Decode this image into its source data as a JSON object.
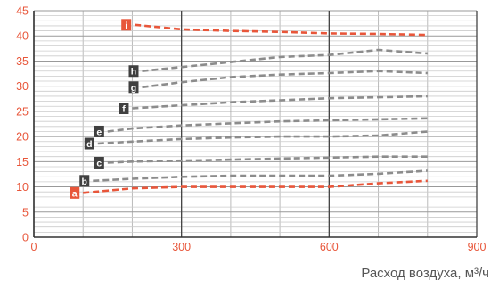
{
  "chart_data": {
    "type": "line",
    "title": "",
    "xlabel": "Расход воздуха, м³/ч",
    "ylabel": "",
    "xlim": [
      0,
      900
    ],
    "ylim": [
      0,
      45
    ],
    "xticks": [
      0,
      300,
      600,
      900
    ],
    "yticks": [
      0,
      5,
      10,
      15,
      20,
      25,
      30,
      35,
      40,
      45
    ],
    "grid": true,
    "legend": "labels at line starts",
    "colors": {
      "axis_text": "#e8563a",
      "gray_series": "#8c8c8c",
      "orange_series": "#e8563a",
      "dark_badge": "#404040",
      "orange_badge": "#e8563a",
      "grid_major": "#444444",
      "grid_minor": "#bbbbbb"
    },
    "series": [
      {
        "name": "a",
        "color": "orange",
        "x": [
          100,
          200,
          300,
          400,
          500,
          600,
          700,
          800
        ],
        "y": [
          8.8,
          9.7,
          10.0,
          10.0,
          10.0,
          10.0,
          10.7,
          11.2
        ]
      },
      {
        "name": "b",
        "color": "gray",
        "x": [
          120,
          200,
          300,
          400,
          500,
          600,
          700,
          800
        ],
        "y": [
          11.2,
          11.6,
          12.0,
          12.2,
          12.2,
          12.2,
          12.6,
          13.2
        ]
      },
      {
        "name": "c",
        "color": "gray",
        "x": [
          150,
          200,
          300,
          400,
          500,
          600,
          700,
          800
        ],
        "y": [
          14.8,
          15.0,
          15.2,
          15.4,
          15.6,
          15.8,
          16.0,
          16.0
        ]
      },
      {
        "name": "d",
        "color": "gray",
        "x": [
          130,
          200,
          300,
          400,
          500,
          600,
          700,
          800
        ],
        "y": [
          18.6,
          19.0,
          19.5,
          19.8,
          20.0,
          20.0,
          20.2,
          21.0
        ]
      },
      {
        "name": "e",
        "color": "gray",
        "x": [
          150,
          200,
          300,
          400,
          500,
          600,
          700,
          800
        ],
        "y": [
          21.0,
          21.6,
          22.2,
          22.6,
          23.0,
          23.2,
          23.4,
          23.6
        ]
      },
      {
        "name": "f",
        "color": "gray",
        "x": [
          200,
          300,
          400,
          500,
          600,
          700,
          800
        ],
        "y": [
          25.6,
          26.2,
          26.8,
          27.2,
          27.6,
          27.8,
          28.0
        ]
      },
      {
        "name": "g",
        "color": "gray",
        "x": [
          220,
          300,
          400,
          500,
          600,
          700,
          800
        ],
        "y": [
          29.8,
          30.8,
          31.8,
          32.3,
          32.6,
          33.0,
          32.6
        ]
      },
      {
        "name": "h",
        "color": "gray",
        "x": [
          220,
          300,
          400,
          500,
          600,
          700,
          800
        ],
        "y": [
          33.0,
          33.8,
          34.8,
          35.8,
          36.2,
          37.2,
          36.5
        ]
      },
      {
        "name": "i",
        "color": "orange",
        "x": [
          205,
          300,
          400,
          500,
          600,
          700,
          800
        ],
        "y": [
          42.2,
          41.3,
          41.0,
          40.8,
          40.5,
          40.4,
          40.2
        ]
      }
    ]
  }
}
